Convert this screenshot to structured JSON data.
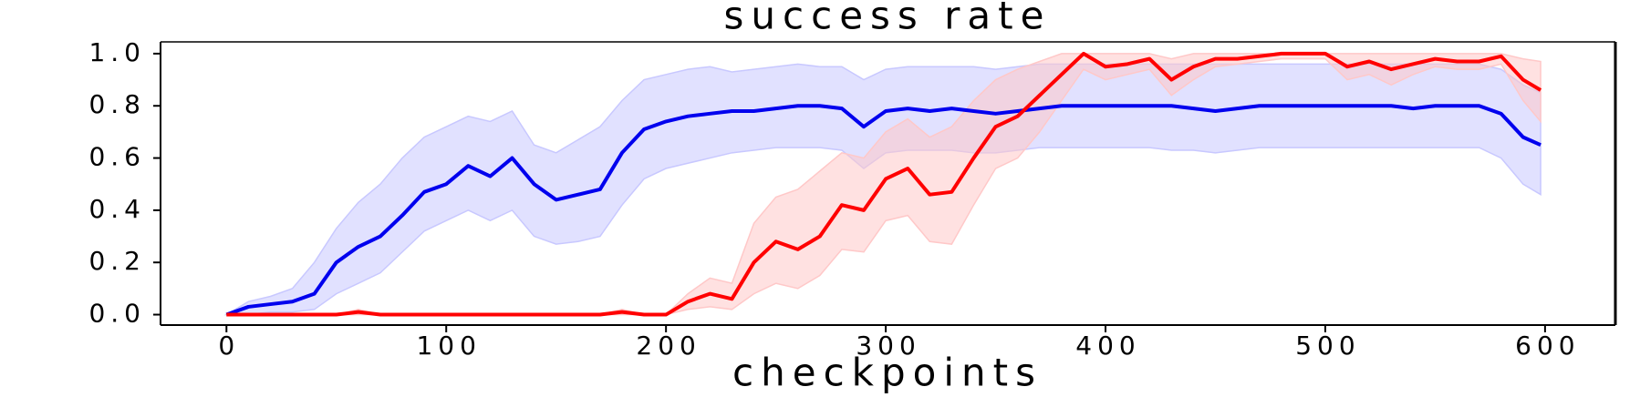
{
  "chart_data": {
    "type": "line",
    "title": "success rate",
    "xlabel": "checkpoints",
    "x": [
      0,
      10,
      20,
      30,
      40,
      50,
      60,
      70,
      80,
      90,
      100,
      110,
      120,
      130,
      140,
      150,
      160,
      170,
      180,
      190,
      200,
      210,
      220,
      230,
      240,
      250,
      260,
      270,
      280,
      290,
      300,
      310,
      320,
      330,
      340,
      350,
      360,
      370,
      380,
      390,
      400,
      410,
      420,
      430,
      440,
      450,
      460,
      470,
      480,
      490,
      500,
      510,
      520,
      530,
      540,
      550,
      560,
      570,
      580,
      590,
      598
    ],
    "series": [
      {
        "color": "#0000ee",
        "band_color": "#c8c8ff",
        "values": [
          0,
          0.03,
          0.04,
          0.05,
          0.08,
          0.2,
          0.26,
          0.3,
          0.38,
          0.47,
          0.5,
          0.57,
          0.53,
          0.6,
          0.5,
          0.44,
          0.46,
          0.48,
          0.62,
          0.71,
          0.74,
          0.76,
          0.77,
          0.78,
          0.78,
          0.79,
          0.8,
          0.8,
          0.79,
          0.72,
          0.78,
          0.79,
          0.78,
          0.79,
          0.78,
          0.77,
          0.78,
          0.79,
          0.8,
          0.8,
          0.8,
          0.8,
          0.8,
          0.8,
          0.79,
          0.78,
          0.79,
          0.8,
          0.8,
          0.8,
          0.8,
          0.8,
          0.8,
          0.8,
          0.79,
          0.8,
          0.8,
          0.8,
          0.77,
          0.68,
          0.65
        ],
        "upper": [
          0,
          0.05,
          0.07,
          0.1,
          0.2,
          0.33,
          0.43,
          0.5,
          0.6,
          0.68,
          0.72,
          0.76,
          0.74,
          0.78,
          0.65,
          0.62,
          0.67,
          0.72,
          0.82,
          0.9,
          0.92,
          0.94,
          0.95,
          0.93,
          0.94,
          0.95,
          0.96,
          0.95,
          0.95,
          0.9,
          0.94,
          0.95,
          0.95,
          0.95,
          0.95,
          0.94,
          0.95,
          0.96,
          0.96,
          0.96,
          0.96,
          0.96,
          0.96,
          0.96,
          0.96,
          0.96,
          0.96,
          0.96,
          0.96,
          0.96,
          0.96,
          0.96,
          0.96,
          0.96,
          0.96,
          0.96,
          0.96,
          0.96,
          0.94,
          0.88,
          0.85
        ],
        "lower": [
          0,
          0,
          0.01,
          0.01,
          0.02,
          0.08,
          0.12,
          0.16,
          0.24,
          0.32,
          0.36,
          0.4,
          0.36,
          0.4,
          0.3,
          0.27,
          0.28,
          0.3,
          0.42,
          0.52,
          0.56,
          0.58,
          0.6,
          0.62,
          0.63,
          0.64,
          0.64,
          0.64,
          0.63,
          0.56,
          0.62,
          0.63,
          0.63,
          0.63,
          0.62,
          0.62,
          0.63,
          0.64,
          0.64,
          0.64,
          0.64,
          0.64,
          0.64,
          0.63,
          0.63,
          0.62,
          0.63,
          0.64,
          0.64,
          0.64,
          0.64,
          0.64,
          0.64,
          0.64,
          0.64,
          0.64,
          0.64,
          0.64,
          0.6,
          0.5,
          0.46
        ]
      },
      {
        "color": "#ff0000",
        "band_color": "#ffc8c8",
        "values": [
          0,
          0,
          0,
          0,
          0,
          0,
          0.01,
          0,
          0,
          0,
          0,
          0,
          0,
          0,
          0,
          0,
          0,
          0,
          0.01,
          0,
          0,
          0.05,
          0.08,
          0.06,
          0.2,
          0.28,
          0.25,
          0.3,
          0.42,
          0.4,
          0.52,
          0.56,
          0.46,
          0.47,
          0.6,
          0.72,
          0.76,
          0.84,
          0.92,
          1,
          0.95,
          0.96,
          0.98,
          0.9,
          0.95,
          0.98,
          0.98,
          0.99,
          1,
          1,
          1,
          0.95,
          0.97,
          0.94,
          0.96,
          0.98,
          0.97,
          0.97,
          0.99,
          0.9,
          0.86
        ],
        "upper": [
          0,
          0,
          0,
          0,
          0,
          0,
          0.02,
          0,
          0,
          0,
          0,
          0,
          0,
          0,
          0,
          0,
          0,
          0,
          0.02,
          0,
          0,
          0.08,
          0.14,
          0.12,
          0.35,
          0.45,
          0.48,
          0.55,
          0.62,
          0.6,
          0.7,
          0.75,
          0.68,
          0.72,
          0.82,
          0.9,
          0.94,
          0.97,
          1,
          1,
          1,
          1,
          1,
          0.98,
          1,
          1,
          1,
          1,
          1,
          1,
          1,
          1,
          1,
          1,
          1,
          1,
          1,
          1,
          1,
          0.98,
          0.97
        ],
        "lower": [
          0,
          0,
          0,
          0,
          0,
          0,
          0,
          0,
          0,
          0,
          0,
          0,
          0,
          0,
          0,
          0,
          0,
          0,
          0,
          0,
          0,
          0.02,
          0.03,
          0.02,
          0.08,
          0.12,
          0.1,
          0.15,
          0.25,
          0.24,
          0.36,
          0.38,
          0.28,
          0.27,
          0.42,
          0.56,
          0.6,
          0.7,
          0.82,
          0.94,
          0.9,
          0.92,
          0.94,
          0.84,
          0.9,
          0.95,
          0.96,
          0.97,
          0.98,
          0.98,
          0.98,
          0.9,
          0.92,
          0.88,
          0.92,
          0.95,
          0.94,
          0.94,
          0.96,
          0.82,
          0.74
        ]
      }
    ],
    "xlim": [
      -30,
      632
    ],
    "xticks": [
      0,
      100,
      200,
      300,
      400,
      500,
      600
    ],
    "ylim": [
      -0.04,
      1.045
    ],
    "yticks": [
      {
        "value": 0,
        "label": "0.0"
      },
      {
        "value": 0.2,
        "label": "0.2"
      },
      {
        "value": 0.4,
        "label": "0.4"
      },
      {
        "value": 0.6,
        "label": "0.6"
      },
      {
        "value": 0.8,
        "label": "0.8"
      },
      {
        "value": 1,
        "label": "1.0"
      }
    ]
  }
}
